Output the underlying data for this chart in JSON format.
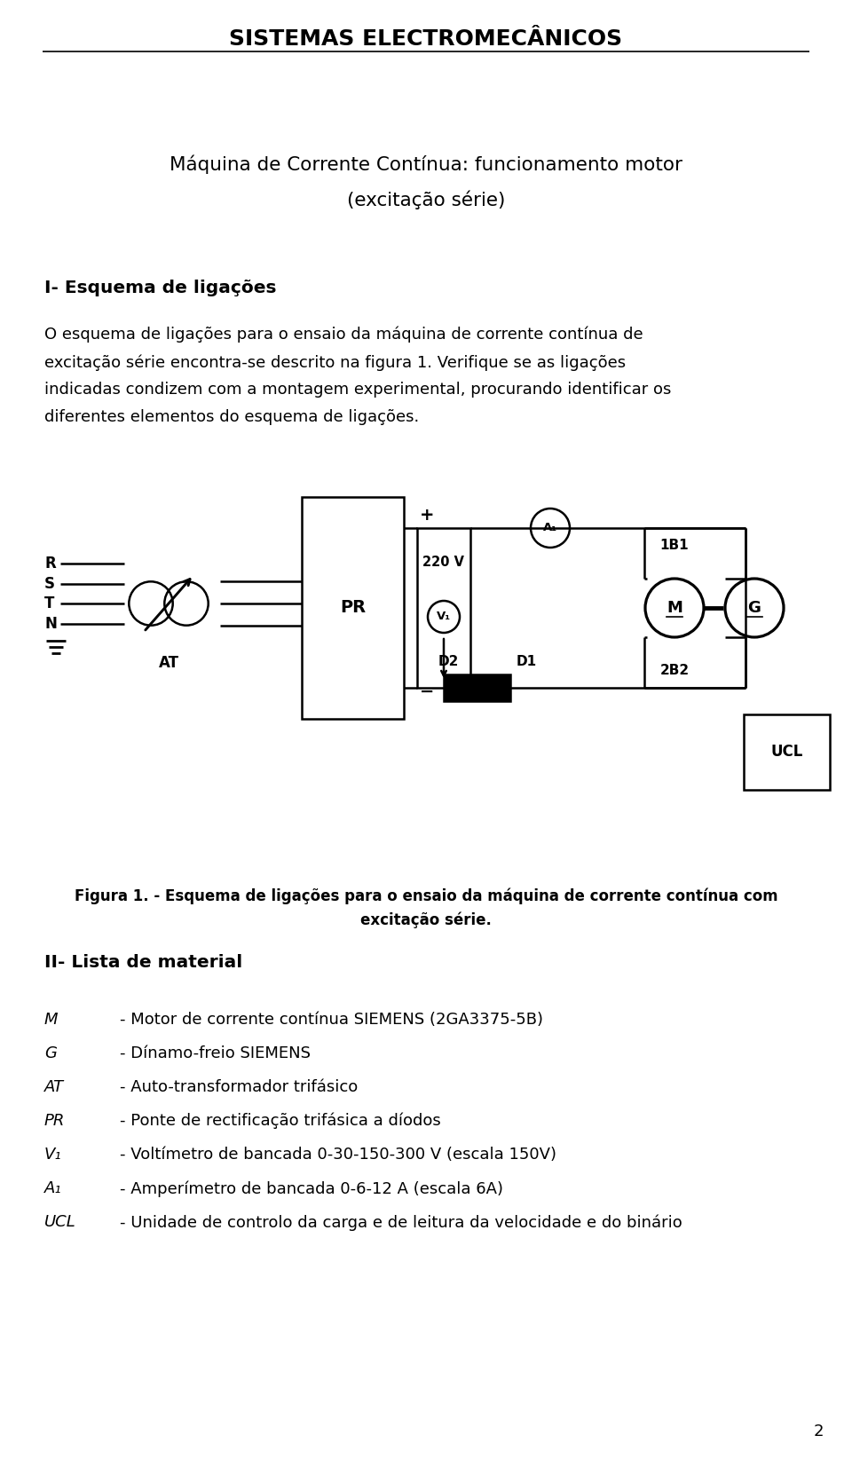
{
  "title": "SISTEMAS ELECTROMECÂNICOS",
  "subtitle1": "Máquina de Corrente Contínua: funcionamento motor",
  "subtitle2": "(excitação série)",
  "section1_title": "I- Esquema de ligações",
  "section1_body_lines": [
    "O esquema de ligações para o ensaio da máquina de corrente contínua de",
    "excitação série encontra-se descrito na figura 1. Verifique se as ligações",
    "indicadas condizem com a montagem experimental, procurando identificar os",
    "diferentes elementos do esquema de ligações."
  ],
  "figura_caption1": "Figura 1. - Esquema de ligações para o ensaio da máquina de corrente contínua com",
  "figura_caption2": "excitação série.",
  "section2_title": "II- Lista de material",
  "page_number": "2",
  "bg_color": "#ffffff",
  "text_color": "#000000",
  "rstn_labels": [
    "R",
    "S",
    "T",
    "N"
  ],
  "pr_label": "PR",
  "at_label": "AT",
  "voltage_label": "220 V",
  "v1_label": "V₁",
  "a1_label": "A₁",
  "m_label": "M",
  "g_label": "G",
  "d2_label": "D2",
  "d1_label": "D1",
  "ucl_label": "UCL",
  "plus_label": "+",
  "minus_label": "−",
  "label_1b1": "1B1",
  "label_2b2": "2B2",
  "item_symbols": [
    "M",
    "G",
    "AT",
    "PR",
    "V₁",
    "A₁",
    "UCL"
  ],
  "item_texts": [
    "- Motor de corrente contínua SIEMENS (2GA3375-5B)",
    "- Dínamo-freio SIEMENS",
    "- Auto-transformador trifásico",
    "- Ponte de rectificação trifásica a díodos",
    "- Voltímetro de bancada 0-30-150-300 V (escala 150V)",
    "- Amperímetro de bancada 0-6-12 A (escala 6A)",
    "- Unidade de controlo da carga e de leitura da velocidade e do binário"
  ]
}
